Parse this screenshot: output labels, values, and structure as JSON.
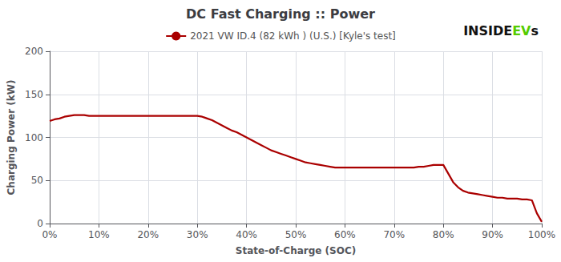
{
  "chart_data": {
    "type": "line",
    "title": "DC Fast Charging :: Power",
    "xlabel": "State-of-Charge (SOC)",
    "ylabel": "Charging Power (kW)",
    "x": [
      0.0,
      0.01,
      0.02,
      0.03,
      0.04,
      0.05,
      0.06,
      0.07,
      0.08,
      0.09,
      0.1,
      0.11,
      0.12,
      0.13,
      0.14,
      0.15,
      0.16,
      0.17,
      0.18,
      0.19,
      0.2,
      0.21,
      0.22,
      0.23,
      0.24,
      0.25,
      0.26,
      0.27,
      0.28,
      0.29,
      0.3,
      0.31,
      0.32,
      0.33,
      0.34,
      0.35,
      0.36,
      0.37,
      0.38,
      0.39,
      0.4,
      0.41,
      0.42,
      0.43,
      0.44,
      0.45,
      0.46,
      0.47,
      0.48,
      0.49,
      0.5,
      0.51,
      0.52,
      0.53,
      0.54,
      0.55,
      0.56,
      0.57,
      0.58,
      0.59,
      0.6,
      0.61,
      0.62,
      0.63,
      0.64,
      0.65,
      0.66,
      0.67,
      0.68,
      0.69,
      0.7,
      0.71,
      0.72,
      0.73,
      0.74,
      0.75,
      0.76,
      0.77,
      0.78,
      0.79,
      0.8,
      0.81,
      0.82,
      0.83,
      0.84,
      0.85,
      0.86,
      0.87,
      0.88,
      0.89,
      0.9,
      0.91,
      0.92,
      0.93,
      0.94,
      0.95,
      0.96,
      0.97,
      0.98,
      0.99,
      1.0
    ],
    "series": [
      {
        "name": "2021 VW ID.4 (82 kWh ) (U.S.) [Kyle's test]",
        "color": "#aa0000",
        "values": [
          119,
          121,
          122,
          124,
          125,
          126,
          126,
          126,
          125,
          125,
          125,
          125,
          125,
          125,
          125,
          125,
          125,
          125,
          125,
          125,
          125,
          125,
          125,
          125,
          125,
          125,
          125,
          125,
          125,
          125,
          125,
          124,
          122,
          120,
          117,
          114,
          111,
          108,
          106,
          103,
          100,
          97,
          94,
          91,
          88,
          85,
          83,
          81,
          79,
          77,
          75,
          73,
          71,
          70,
          69,
          68,
          67,
          66,
          65,
          65,
          65,
          65,
          65,
          65,
          65,
          65,
          65,
          65,
          65,
          65,
          65,
          65,
          65,
          65,
          65,
          66,
          66,
          67,
          68,
          68,
          68,
          58,
          48,
          42,
          38,
          36,
          35,
          34,
          33,
          32,
          31,
          30,
          30,
          29,
          29,
          29,
          28,
          28,
          27,
          12,
          2
        ]
      }
    ],
    "xlim": [
      0,
      1.0
    ],
    "ylim": [
      0,
      200
    ],
    "xticks": [
      {
        "value": 0,
        "label": "0%"
      },
      {
        "value": 0.1,
        "label": "10%"
      },
      {
        "value": 0.2,
        "label": "20%"
      },
      {
        "value": 0.3,
        "label": "30%"
      },
      {
        "value": 0.4,
        "label": "40%"
      },
      {
        "value": 0.5,
        "label": "50%"
      },
      {
        "value": 0.6,
        "label": "60%"
      },
      {
        "value": 0.7,
        "label": "70%"
      },
      {
        "value": 0.8,
        "label": "80%"
      },
      {
        "value": 0.9,
        "label": "90%"
      },
      {
        "value": 1.0,
        "label": "100%"
      }
    ],
    "yticks": [
      0,
      50,
      100,
      150,
      200
    ],
    "grid": true,
    "legend": "upper center",
    "annotations": [
      {
        "text": "INSIDE",
        "color": "#111111"
      },
      {
        "text": "EV",
        "color": "#55cc00"
      },
      {
        "text": "s",
        "color": "#111111"
      }
    ]
  }
}
